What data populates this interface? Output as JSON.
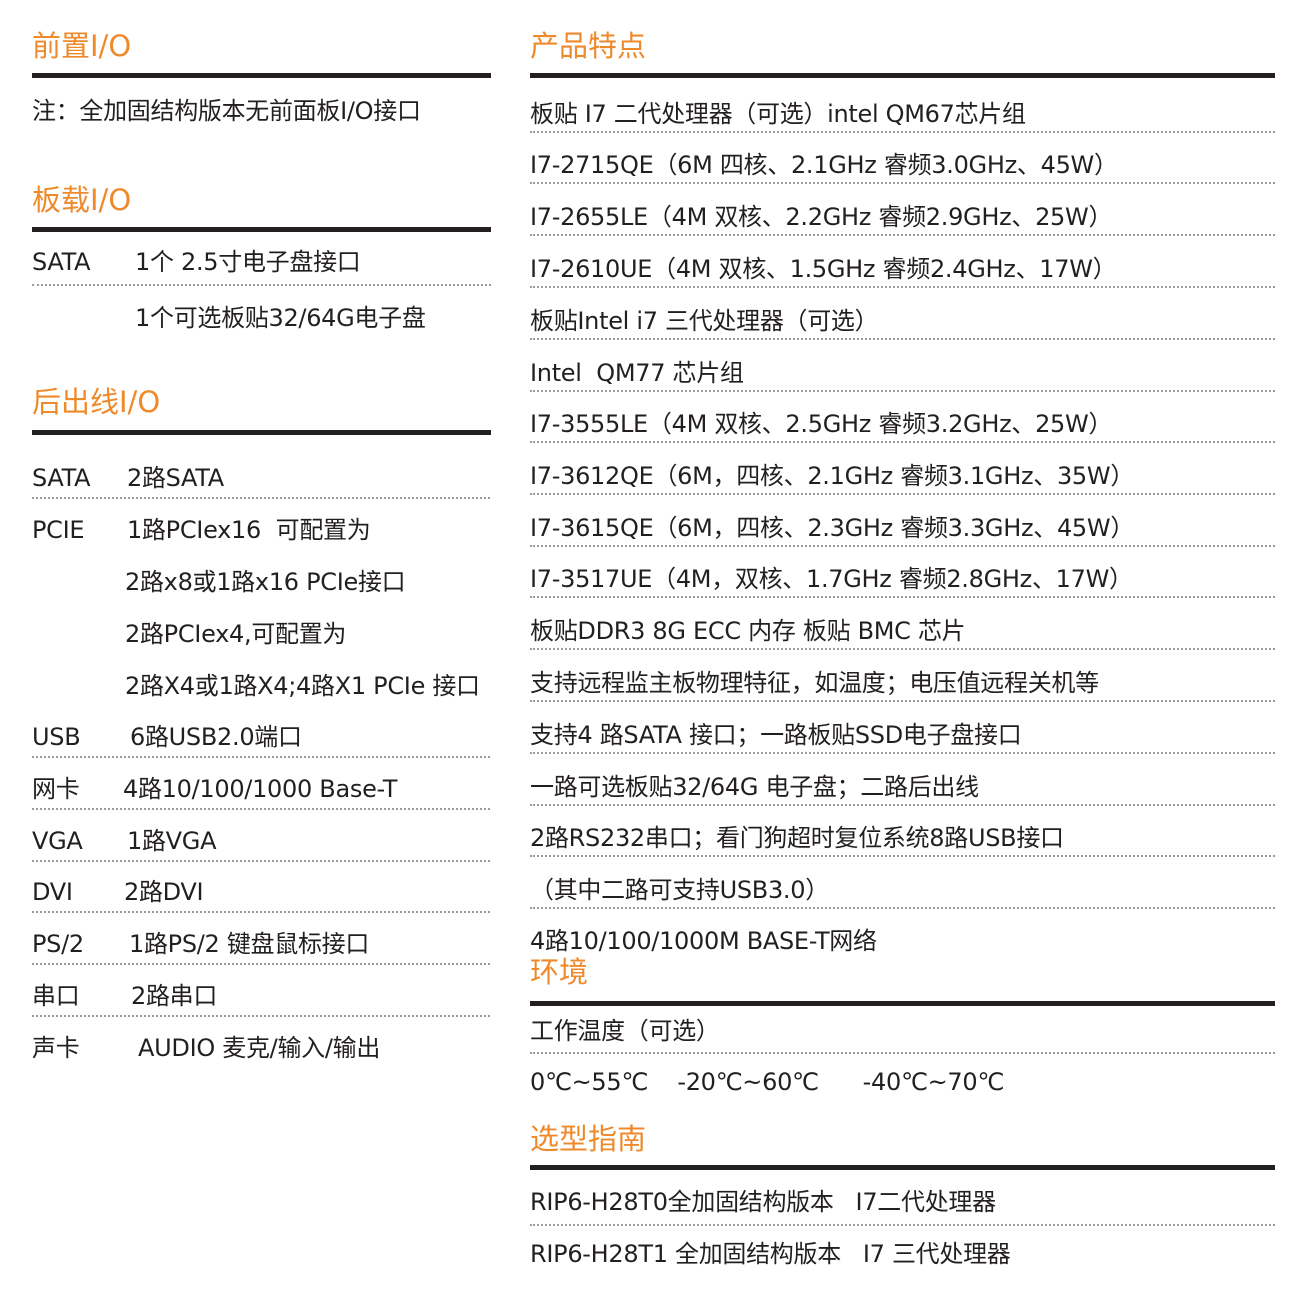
{
  "left": {
    "front_io": {
      "title": "前置I/O",
      "note": "注：全加固结构版本无前面板I/O接口"
    },
    "onboard_io": {
      "title": "板载I/O",
      "rows": [
        {
          "label": "SATA",
          "value": "1个 2.5寸电子盘接口"
        },
        {
          "label": "",
          "value": "1个可选板贴32/64G电子盘"
        }
      ]
    },
    "rear_io": {
      "title": "后出线I/O",
      "rows": [
        {
          "label": "SATA",
          "value": "2路SATA"
        },
        {
          "label": "PCIE",
          "value": "1路PCIex16  可配置为"
        },
        {
          "label": "",
          "value": "2路x8或1路x16 PCIe接口"
        },
        {
          "label": "",
          "value": "2路PCIex4,可配置为"
        },
        {
          "label": "",
          "value": "2路X4或1路X4;4路X1 PCIe 接口"
        },
        {
          "label": "USB",
          "value": "6路USB2.0端口"
        },
        {
          "label": "网卡",
          "value": "4路10/100/1000 Base-T"
        },
        {
          "label": "VGA",
          "value": "1路VGA"
        },
        {
          "label": "DVI",
          "value": "2路DVI"
        },
        {
          "label": "PS/2",
          "value": "1路PS/2 键盘鼠标接口"
        },
        {
          "label": "串口",
          "value": "2路串口"
        },
        {
          "label": "声卡",
          "value": "AUDIO 麦克/输入/输出"
        }
      ]
    }
  },
  "right": {
    "features": {
      "title": "产品特点",
      "rows": [
        "板贴 I7 二代处理器（可选）intel QM67芯片组",
        "I7-2715QE（6M 四核、2.1GHz 睿频3.0GHz、45W）",
        "I7-2655LE（4M 双核、2.2GHz 睿频2.9GHz、25W）",
        "I7-2610UE（4M 双核、1.5GHz 睿频2.4GHz、17W）",
        "板贴Intel i7 三代处理器（可选）",
        "Intel  QM77 芯片组",
        "I7-3555LE（4M 双核、2.5GHz 睿频3.2GHz、25W）",
        "I7-3612QE（6M，四核、2.1GHz 睿频3.1GHz、35W）",
        "I7-3615QE（6M，四核、2.3GHz 睿频3.3GHz、45W）",
        "I7-3517UE（4M，双核、1.7GHz 睿频2.8GHz、17W）",
        "板贴DDR3 8G ECC 内存 板贴 BMC 芯片",
        "支持远程监主板物理特征，如温度；电压值远程关机等",
        "支持4 路SATA 接口；一路板贴SSD电子盘接口",
        "一路可选板贴32/64G 电子盘；二路后出线",
        "2路RS232串口；看门狗超时复位系统8路USB接口",
        "（其中二路可支持USB3.0）",
        "4路10/100/1000M BASE-T网络"
      ]
    },
    "environment": {
      "title": "环境",
      "rows": [
        "工作温度（可选）",
        "0℃~55℃    -20℃~60℃      -40℃~70℃"
      ]
    },
    "selection": {
      "title": "选型指南",
      "rows": [
        "RIP6-H28T0全加固结构版本   I7二代处理器",
        "RIP6-H28T1 全加固结构版本   I7 三代处理器"
      ]
    }
  },
  "colors": {
    "heading": "#ef8a2c",
    "text": "#231f20",
    "rule": "#231f20",
    "dotted": "#9a9a9a"
  }
}
